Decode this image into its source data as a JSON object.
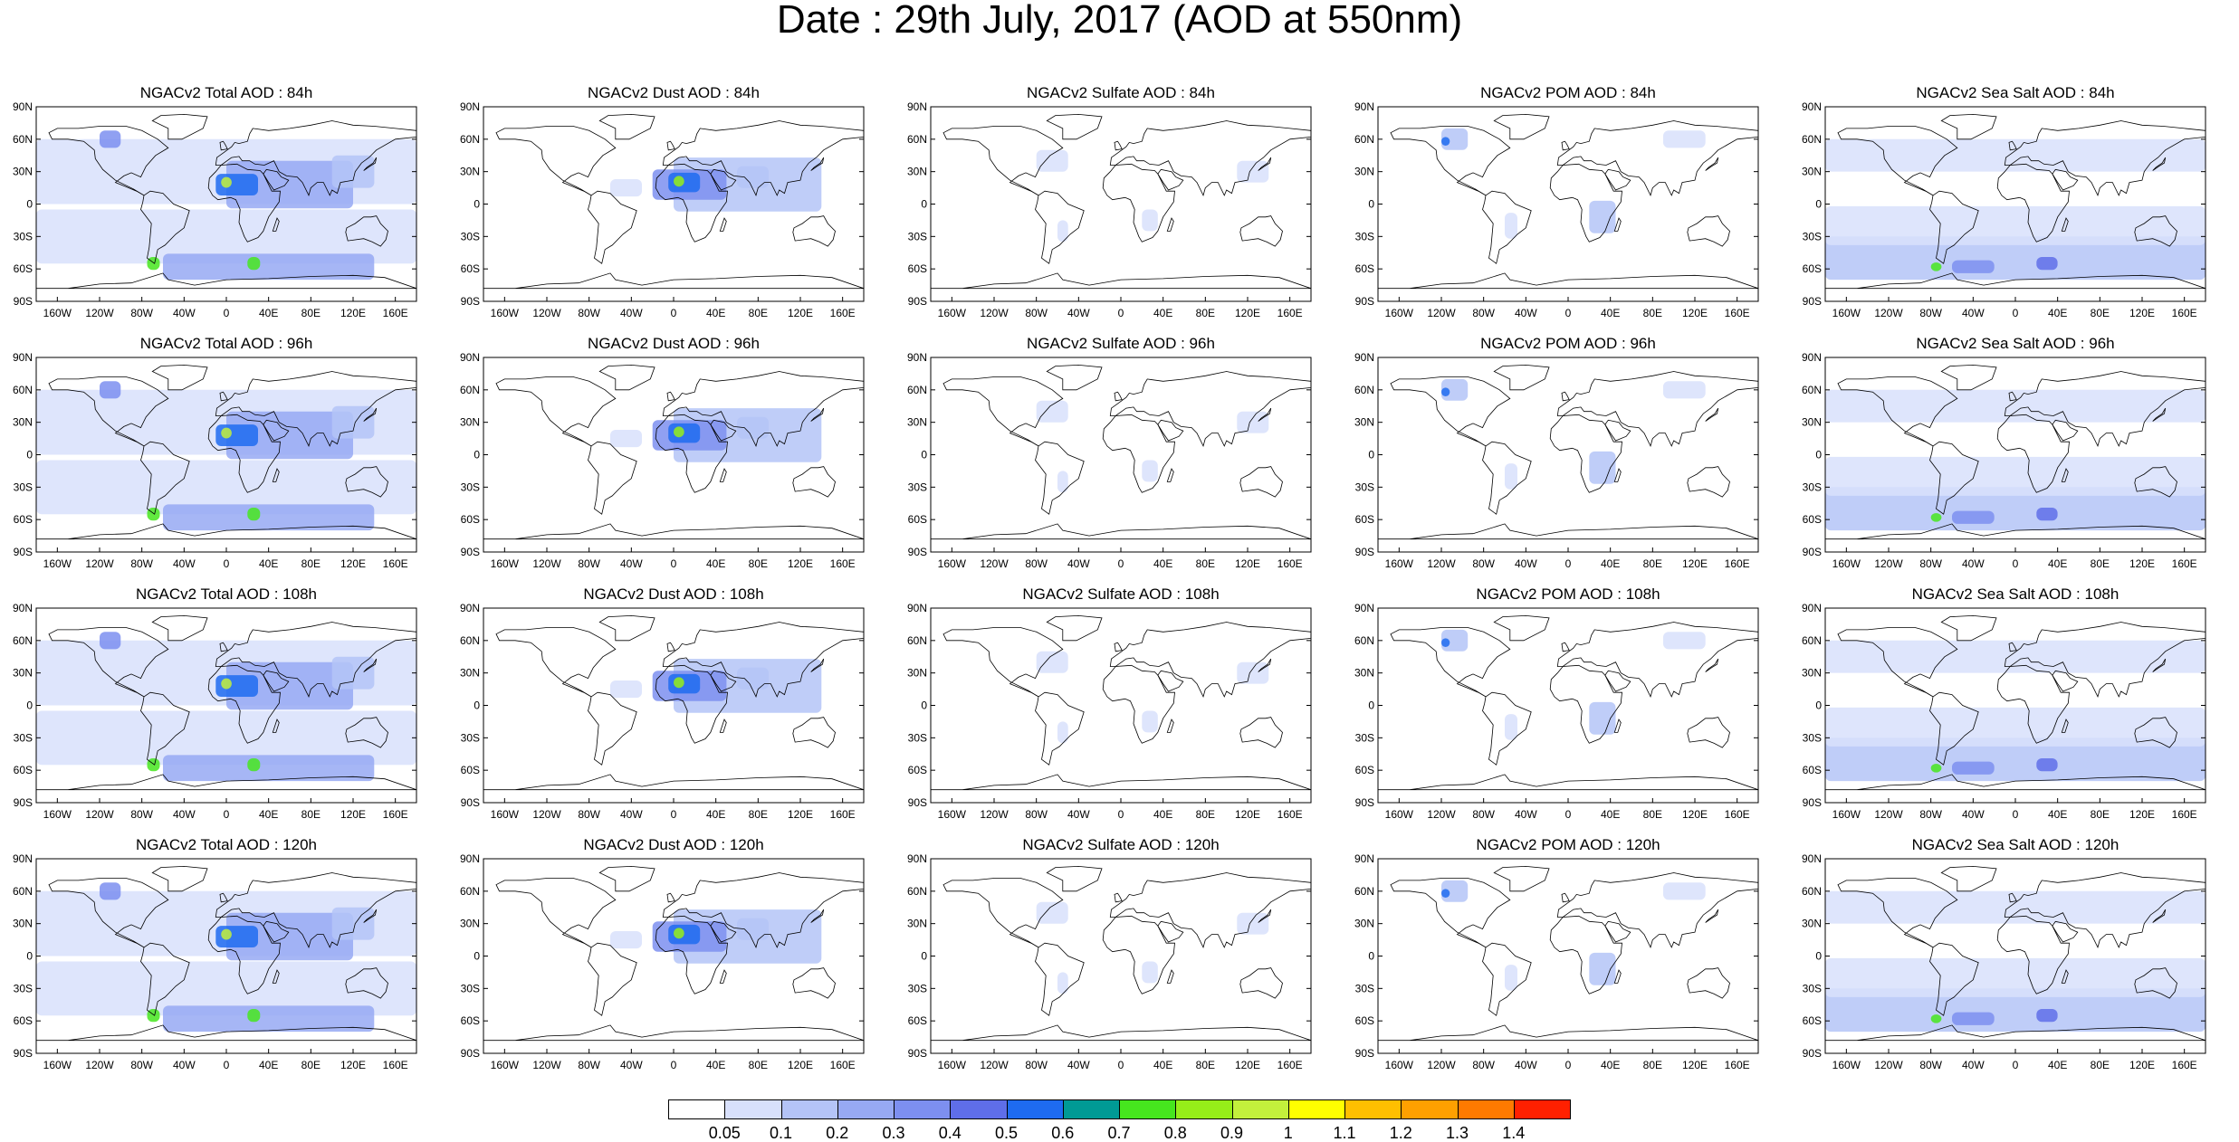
{
  "title": "Date : 29th July, 2017 (AOD at 550nm)",
  "rows": [
    "84h",
    "96h",
    "108h",
    "120h"
  ],
  "columns": [
    {
      "key": "total",
      "title_prefix": "NGACv2 Total AOD"
    },
    {
      "key": "dust",
      "title_prefix": "NGACv2 Dust AOD"
    },
    {
      "key": "sulfate",
      "title_prefix": "NGACv2 Sulfate AOD"
    },
    {
      "key": "pom",
      "title_prefix": "NGACv2 POM AOD"
    },
    {
      "key": "seasalt",
      "title_prefix": "NGACv2 Sea Salt AOD"
    }
  ],
  "panels": [
    [
      "NGACv2 Total AOD : 84h",
      "NGACv2 Dust AOD : 84h",
      "NGACv2 Sulfate AOD : 84h",
      "NGACv2 POM AOD : 84h",
      "NGACv2 Sea Salt AOD : 84h"
    ],
    [
      "NGACv2 Total AOD : 96h",
      "NGACv2 Dust AOD : 96h",
      "NGACv2 Sulfate AOD : 96h",
      "NGACv2 POM AOD : 96h",
      "NGACv2 Sea Salt AOD : 96h"
    ],
    [
      "NGACv2 Total AOD : 108h",
      "NGACv2 Dust AOD : 108h",
      "NGACv2 Sulfate AOD : 108h",
      "NGACv2 POM AOD : 108h",
      "NGACv2 Sea Salt AOD : 108h"
    ],
    [
      "NGACv2 Total AOD : 120h",
      "NGACv2 Dust AOD : 120h",
      "NGACv2 Sulfate AOD : 120h",
      "NGACv2 POM AOD : 120h",
      "NGACv2 Sea Salt  AOD : 120h"
    ]
  ],
  "lat_labels": [
    "90N",
    "60N",
    "30N",
    "0",
    "30S",
    "60S",
    "90S"
  ],
  "lon_labels": [
    "160W",
    "120W",
    "80W",
    "40W",
    "0",
    "40E",
    "80E",
    "120E",
    "160E"
  ],
  "colorbar": {
    "labels": [
      "0.05",
      "0.1",
      "0.2",
      "0.3",
      "0.4",
      "0.5",
      "0.6",
      "0.7",
      "0.8",
      "0.9",
      "1",
      "1.1",
      "1.2",
      "1.3",
      "1.4"
    ],
    "colors": [
      "#ffffff",
      "#d8e0fb",
      "#b4c4f7",
      "#97a9f3",
      "#7d8ff0",
      "#5f6ee9",
      "#1e6bf0",
      "#009a95",
      "#46e61e",
      "#96ee19",
      "#c3f03c",
      "#ffff00",
      "#ffbf00",
      "#ffa000",
      "#ff7a00",
      "#ff2000"
    ]
  }
}
